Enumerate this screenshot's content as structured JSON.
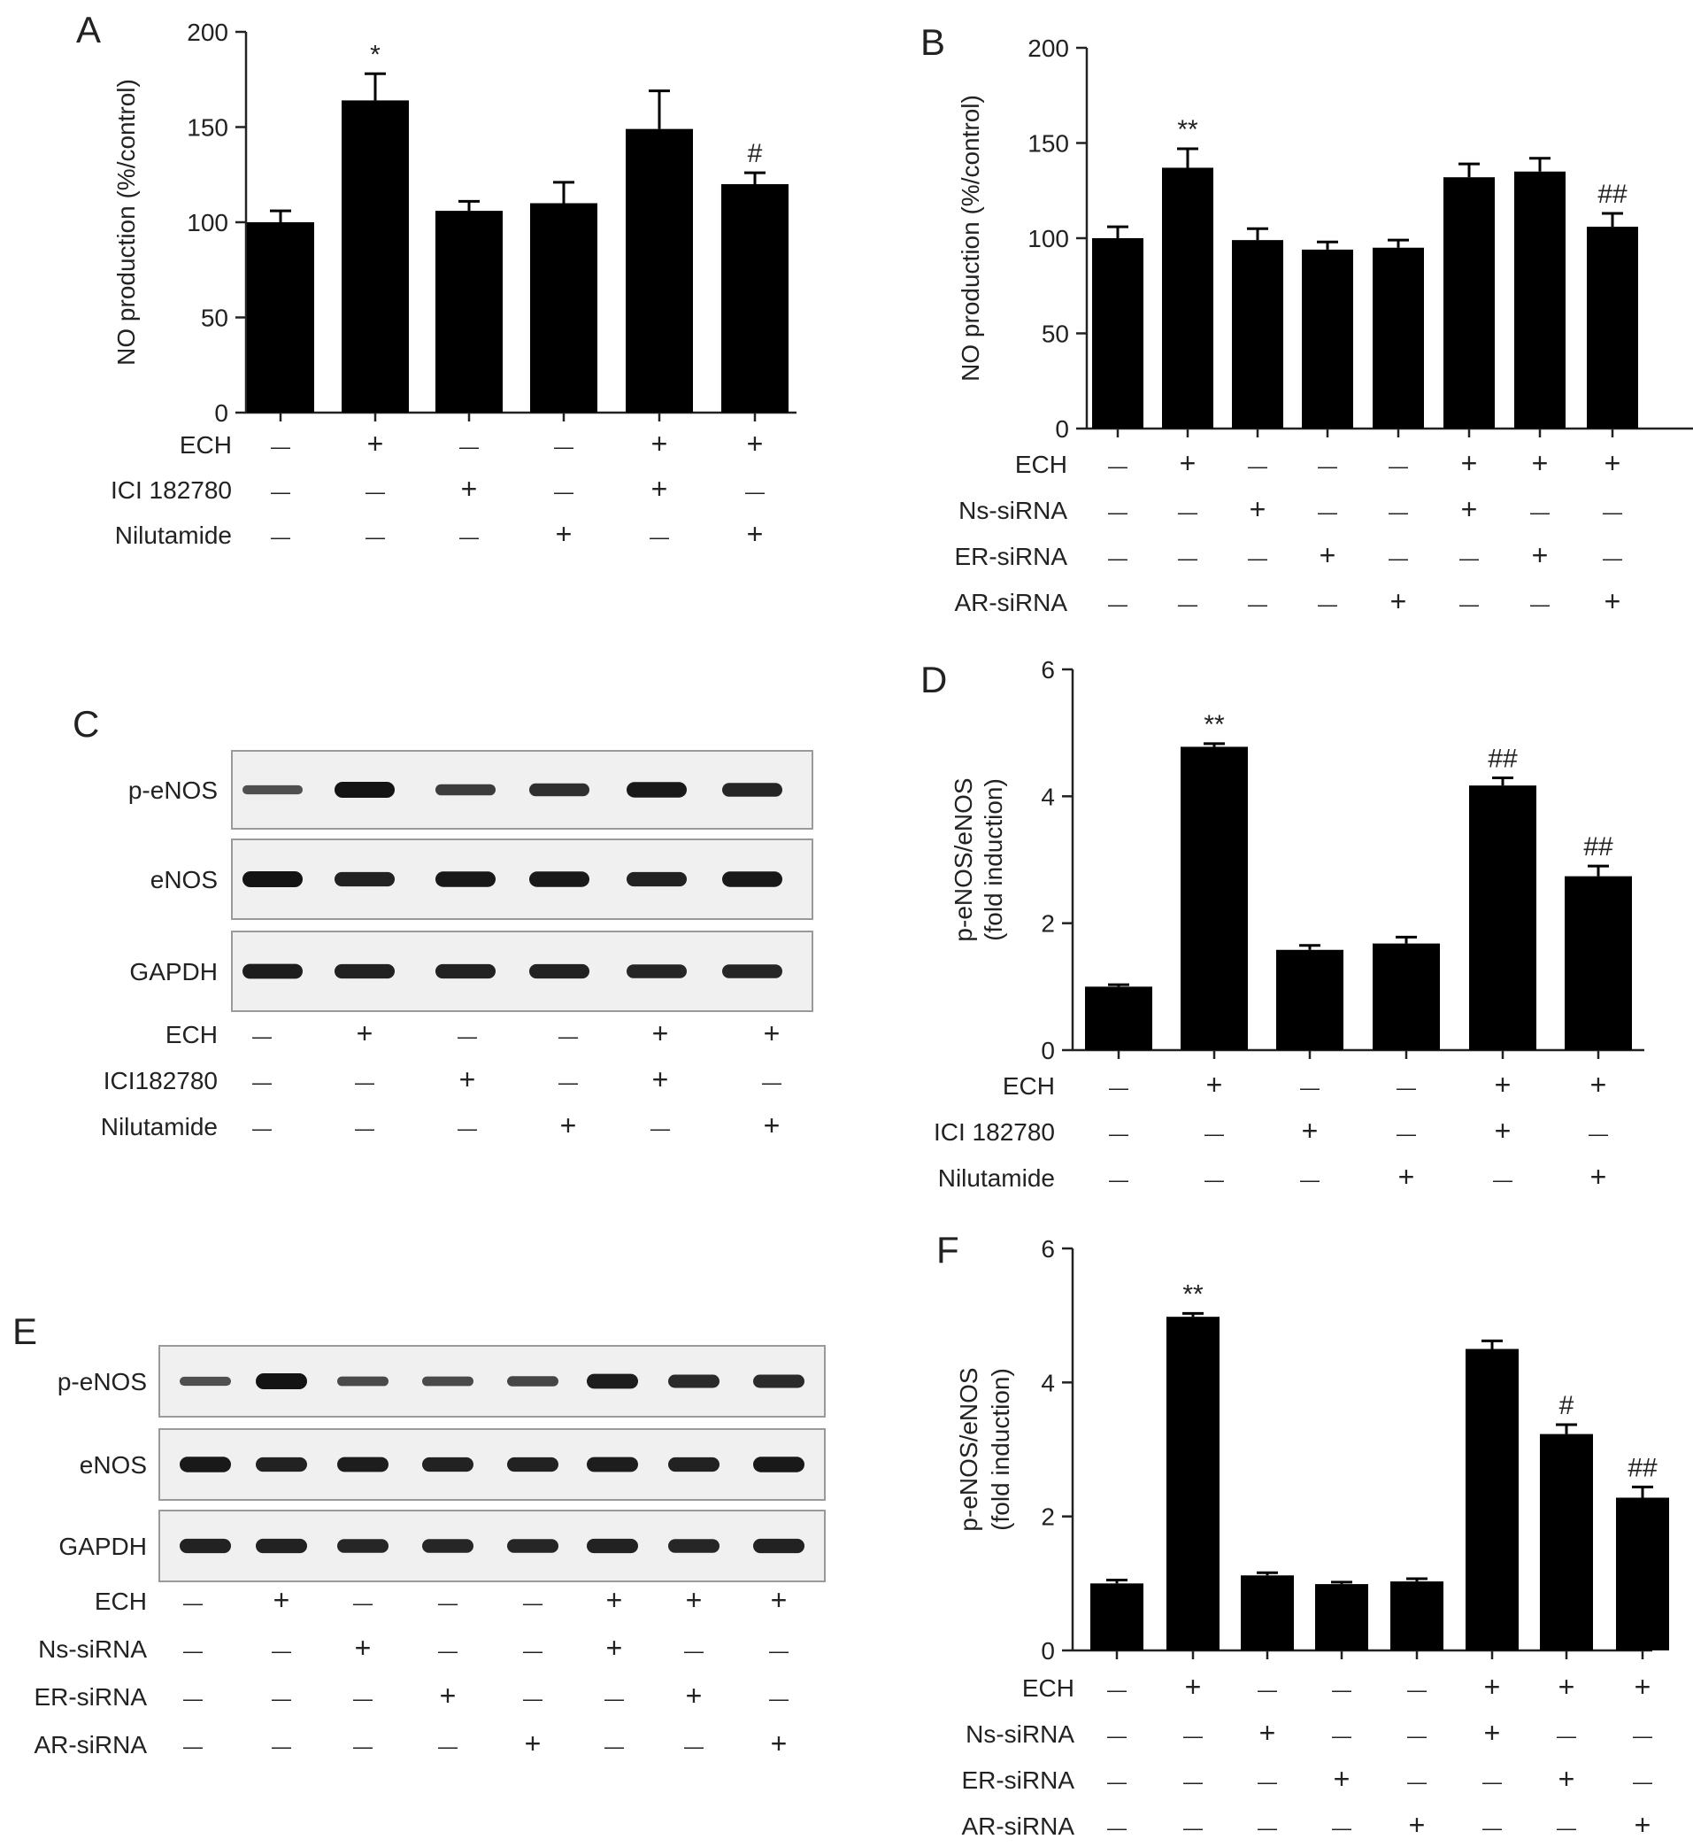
{
  "panels": {
    "A": "A",
    "B": "B",
    "C": "C",
    "D": "D",
    "E": "E",
    "F": "F"
  },
  "symbols": {
    "plus": "+",
    "minus": "—"
  },
  "chart_data": [
    {
      "id": "A",
      "type": "bar",
      "ylabel": "NO production (%/control)",
      "ylim": [
        0,
        200
      ],
      "yticks": [
        0,
        50,
        100,
        150,
        200
      ],
      "values": [
        100,
        164,
        106,
        110,
        149,
        120
      ],
      "errors": [
        6,
        14,
        5,
        11,
        20,
        6
      ],
      "annotations": [
        "",
        "*",
        "",
        "",
        "",
        "#"
      ],
      "conditions": [
        {
          "label": "ECH",
          "signs": [
            "-",
            "+",
            "-",
            "-",
            "+",
            "+"
          ]
        },
        {
          "label": "ICI 182780",
          "signs": [
            "-",
            "-",
            "+",
            "-",
            "+",
            "-"
          ]
        },
        {
          "label": "Nilutamide",
          "signs": [
            "-",
            "-",
            "-",
            "+",
            "-",
            "+"
          ]
        }
      ]
    },
    {
      "id": "B",
      "type": "bar",
      "ylabel": "NO production (%/control)",
      "ylim": [
        0,
        200
      ],
      "yticks": [
        0,
        50,
        100,
        150,
        200
      ],
      "values": [
        100,
        137,
        99,
        94,
        95,
        132,
        135,
        106
      ],
      "errors": [
        6,
        10,
        6,
        4,
        4,
        7,
        7,
        7
      ],
      "annotations": [
        "",
        "**",
        "",
        "",
        "",
        "",
        "",
        "##"
      ],
      "conditions": [
        {
          "label": "ECH",
          "signs": [
            "-",
            "+",
            "-",
            "-",
            "-",
            "+",
            "+",
            "+"
          ]
        },
        {
          "label": "Ns-siRNA",
          "signs": [
            "-",
            "-",
            "+",
            "-",
            "-",
            "+",
            "-",
            "-"
          ]
        },
        {
          "label": "ER-siRNA",
          "signs": [
            "-",
            "-",
            "-",
            "+",
            "-",
            "-",
            "+",
            "-"
          ]
        },
        {
          "label": "AR-siRNA",
          "signs": [
            "-",
            "-",
            "-",
            "-",
            "+",
            "-",
            "-",
            "+"
          ]
        }
      ]
    },
    {
      "id": "D",
      "type": "bar",
      "ylabel": "p-eNOS/eNOS",
      "ylabel2": "(fold induction)",
      "ylim": [
        0,
        6
      ],
      "yticks": [
        0,
        2,
        4,
        6
      ],
      "values": [
        1.0,
        4.78,
        1.58,
        1.68,
        4.17,
        2.74
      ],
      "errors": [
        0.03,
        0.05,
        0.07,
        0.1,
        0.12,
        0.16
      ],
      "annotations": [
        "",
        "**",
        "",
        "",
        "##",
        "##"
      ],
      "conditions": [
        {
          "label": "ECH",
          "signs": [
            "-",
            "+",
            "-",
            "-",
            "+",
            "+"
          ]
        },
        {
          "label": "ICI 182780",
          "signs": [
            "-",
            "-",
            "+",
            "-",
            "+",
            "-"
          ]
        },
        {
          "label": "Nilutamide",
          "signs": [
            "-",
            "-",
            "-",
            "+",
            "-",
            "+"
          ]
        }
      ]
    },
    {
      "id": "F",
      "type": "bar",
      "ylabel": "p-eNOS/eNOS",
      "ylabel2": "(fold induction)",
      "ylim": [
        0,
        6
      ],
      "yticks": [
        0,
        2,
        4,
        6
      ],
      "values": [
        1.0,
        4.98,
        1.12,
        0.99,
        1.03,
        4.5,
        3.23,
        2.28
      ],
      "errors": [
        0.05,
        0.05,
        0.04,
        0.03,
        0.04,
        0.12,
        0.14,
        0.16
      ],
      "annotations": [
        "",
        "**",
        "",
        "",
        "",
        "",
        "#",
        "##"
      ],
      "conditions": [
        {
          "label": "ECH",
          "signs": [
            "-",
            "+",
            "-",
            "-",
            "-",
            "+",
            "+",
            "+"
          ]
        },
        {
          "label": "Ns-siRNA",
          "signs": [
            "-",
            "-",
            "+",
            "-",
            "-",
            "+",
            "-",
            "-"
          ]
        },
        {
          "label": "ER-siRNA",
          "signs": [
            "-",
            "-",
            "-",
            "+",
            "-",
            "-",
            "+",
            "-"
          ]
        },
        {
          "label": "AR-siRNA",
          "signs": [
            "-",
            "-",
            "-",
            "-",
            "+",
            "-",
            "-",
            "+"
          ]
        }
      ]
    }
  ],
  "blots": [
    {
      "id": "C",
      "rows": [
        {
          "label": "p-eNOS",
          "intensity": [
            0.35,
            1.0,
            0.55,
            0.7,
            0.95,
            0.8
          ]
        },
        {
          "label": "eNOS",
          "intensity": [
            1.0,
            0.85,
            0.95,
            0.95,
            0.85,
            0.95
          ]
        },
        {
          "label": "GAPDH",
          "intensity": [
            0.9,
            0.85,
            0.85,
            0.85,
            0.8,
            0.8
          ]
        }
      ],
      "conditions": [
        {
          "label": "ECH",
          "signs": [
            "-",
            "+",
            "-",
            "-",
            "+",
            "+"
          ]
        },
        {
          "label": "ICI182780",
          "signs": [
            "-",
            "-",
            "+",
            "-",
            "+",
            "-"
          ]
        },
        {
          "label": "Nilutamide",
          "signs": [
            "-",
            "-",
            "-",
            "+",
            "-",
            "+"
          ]
        }
      ]
    },
    {
      "id": "E",
      "rows": [
        {
          "label": "p-eNOS",
          "intensity": [
            0.35,
            1.0,
            0.4,
            0.4,
            0.45,
            0.9,
            0.75,
            0.75
          ]
        },
        {
          "label": "eNOS",
          "intensity": [
            0.95,
            0.85,
            0.9,
            0.85,
            0.85,
            0.9,
            0.85,
            0.95
          ]
        },
        {
          "label": "GAPDH",
          "intensity": [
            0.85,
            0.85,
            0.8,
            0.8,
            0.8,
            0.85,
            0.8,
            0.85
          ]
        }
      ],
      "conditions": [
        {
          "label": "ECH",
          "signs": [
            "-",
            "+",
            "-",
            "-",
            "-",
            "+",
            "+",
            "+"
          ]
        },
        {
          "label": "Ns-siRNA",
          "signs": [
            "-",
            "-",
            "+",
            "-",
            "-",
            "+",
            "-",
            "-"
          ]
        },
        {
          "label": "ER-siRNA",
          "signs": [
            "-",
            "-",
            "-",
            "+",
            "-",
            "-",
            "+",
            "-"
          ]
        },
        {
          "label": "AR-siRNA",
          "signs": [
            "-",
            "-",
            "-",
            "-",
            "+",
            "-",
            "-",
            "+"
          ]
        }
      ]
    }
  ]
}
